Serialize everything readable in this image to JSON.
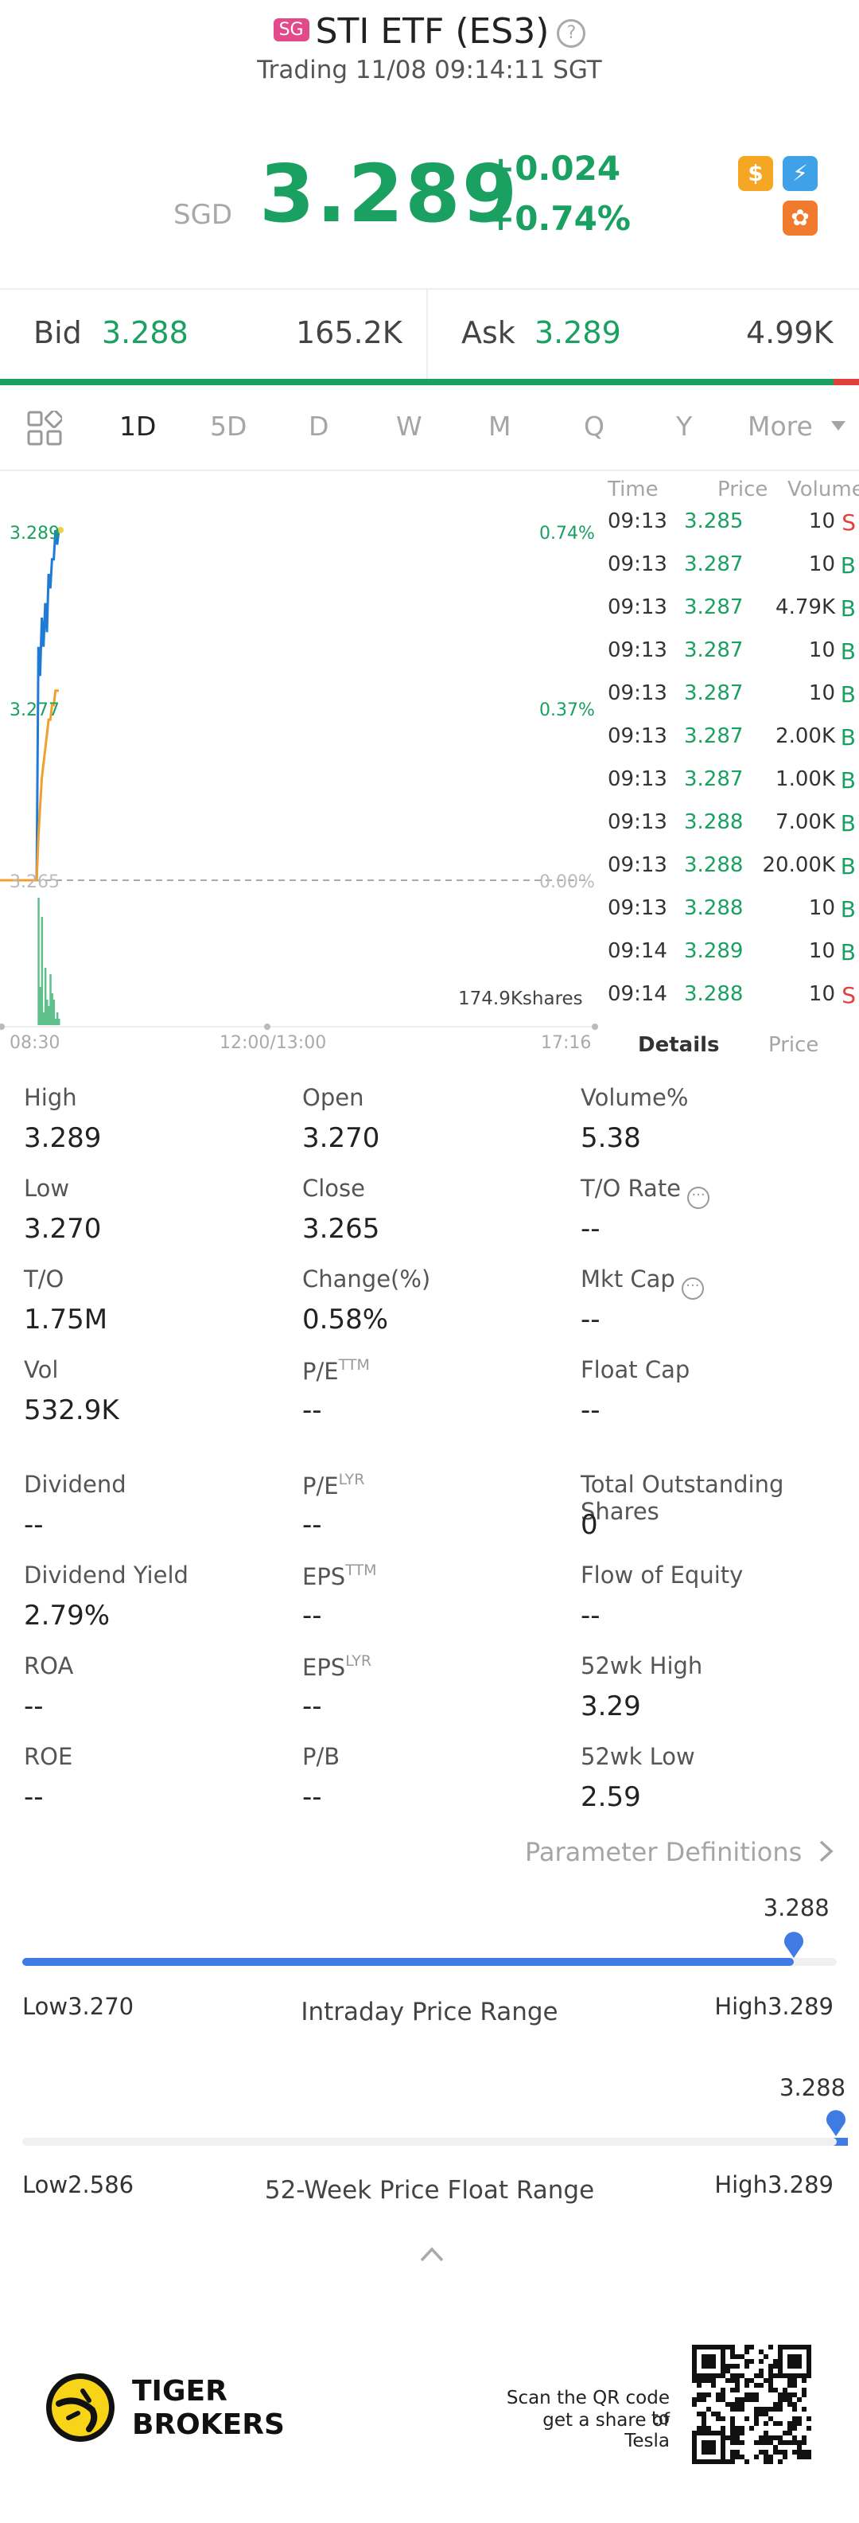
{
  "header": {
    "market_badge": "SG",
    "title": "STI ETF (ES3)",
    "help_icon": "question-circle-icon",
    "trading_status": "Trading 11/08 09:14:11 SGT",
    "currency": "SGD",
    "last_price": "3.289",
    "change_abs": "+0.024",
    "change_pct": "+0.74%",
    "badges": [
      {
        "icon": "dollar-badge-icon",
        "glyph": "$",
        "color": "#f5a623"
      },
      {
        "icon": "lightning-badge-icon",
        "glyph": "⚡",
        "color": "#3fa2e8"
      },
      {
        "icon": "brain-badge-icon",
        "glyph": "✿",
        "color": "#f07b2e"
      }
    ]
  },
  "bidask": {
    "bid_label": "Bid",
    "bid_price": "3.288",
    "bid_size": "165.2K",
    "ask_label": "Ask",
    "ask_price": "3.289",
    "ask_size": "4.99K",
    "bid_share": 0.97
  },
  "tabs": {
    "items": [
      "1D",
      "5D",
      "D",
      "W",
      "M",
      "Q",
      "Y",
      "More"
    ],
    "active": "1D",
    "grid_icon": "layout-grid-icon",
    "more_icon": "caret-down-icon"
  },
  "chart_data": {
    "type": "line",
    "y_left_labels": [
      "3.289",
      "3.277",
      "3.265"
    ],
    "y_right_labels": [
      "0.74%",
      "0.37%",
      "0.00%"
    ],
    "x_labels": [
      "08:30",
      "12:00/13:00",
      "17:16"
    ],
    "ylim": [
      3.253,
      3.289
    ],
    "prev_close": 3.265,
    "volume_label": "174.9Kshares",
    "series": [
      {
        "color": "#1f7bd6",
        "values": [
          3.265,
          3.265,
          3.281,
          3.279,
          3.283,
          3.281,
          3.284,
          3.282,
          3.286,
          3.285,
          3.287,
          3.287,
          3.289,
          3.288,
          3.289
        ]
      },
      {
        "color": "#f0a030",
        "values": [
          3.265,
          3.265,
          3.268,
          3.27,
          3.272,
          3.273,
          3.274,
          3.275,
          3.276,
          3.276,
          3.277,
          3.277,
          3.278,
          3.278,
          3.278
        ]
      }
    ],
    "volume": [
      0.0,
      0.0,
      1.0,
      0.3,
      0.85,
      0.1,
      0.45,
      0.2,
      0.15,
      0.4,
      0.25,
      0.2,
      0.05,
      0.1,
      0.05
    ]
  },
  "trades": {
    "headers": {
      "time": "Time",
      "price": "Price",
      "volume": "Volume"
    },
    "rows": [
      {
        "time": "09:13",
        "price": "3.285",
        "volume": "10",
        "side": "S"
      },
      {
        "time": "09:13",
        "price": "3.287",
        "volume": "10",
        "side": "B"
      },
      {
        "time": "09:13",
        "price": "3.287",
        "volume": "4.79K",
        "side": "B"
      },
      {
        "time": "09:13",
        "price": "3.287",
        "volume": "10",
        "side": "B"
      },
      {
        "time": "09:13",
        "price": "3.287",
        "volume": "10",
        "side": "B"
      },
      {
        "time": "09:13",
        "price": "3.287",
        "volume": "2.00K",
        "side": "B"
      },
      {
        "time": "09:13",
        "price": "3.287",
        "volume": "1.00K",
        "side": "B"
      },
      {
        "time": "09:13",
        "price": "3.288",
        "volume": "7.00K",
        "side": "B"
      },
      {
        "time": "09:13",
        "price": "3.288",
        "volume": "20.00K",
        "side": "B"
      },
      {
        "time": "09:13",
        "price": "3.288",
        "volume": "10",
        "side": "B"
      },
      {
        "time": "09:14",
        "price": "3.289",
        "volume": "10",
        "side": "B"
      },
      {
        "time": "09:14",
        "price": "3.288",
        "volume": "10",
        "side": "S"
      }
    ],
    "tab_details": "Details",
    "tab_price": "Price"
  },
  "stats": [
    {
      "label": "High",
      "value": "3.289"
    },
    {
      "label": "Open",
      "value": "3.270"
    },
    {
      "label": "Volume%",
      "value": "5.38"
    },
    {
      "label": "Low",
      "value": "3.270"
    },
    {
      "label": "Close",
      "value": "3.265"
    },
    {
      "label": "T/O Rate",
      "value": "--",
      "info": true
    },
    {
      "label": "T/O",
      "value": "1.75M"
    },
    {
      "label": "Change(%)",
      "value": "0.58%"
    },
    {
      "label": "Mkt Cap",
      "value": "--",
      "info": true
    },
    {
      "label": "Vol",
      "value": "532.9K"
    },
    {
      "label": "P/E",
      "sup": "TTM",
      "value": "--"
    },
    {
      "label": "Float Cap",
      "value": "--"
    },
    {
      "label": "Dividend",
      "value": "--"
    },
    {
      "label": "P/E",
      "sup": "LYR",
      "value": "--"
    },
    {
      "label": "Total Outstanding Shares",
      "value": "0"
    },
    {
      "label": "Dividend Yield",
      "value": "2.79%"
    },
    {
      "label": "EPS",
      "sup": "TTM",
      "value": "--"
    },
    {
      "label": "Flow of Equity",
      "value": "--"
    },
    {
      "label": "ROA",
      "value": "--"
    },
    {
      "label": "EPS",
      "sup": "LYR",
      "value": "--"
    },
    {
      "label": "52wk High",
      "value": "3.29"
    },
    {
      "label": "ROE",
      "value": "--"
    },
    {
      "label": "P/B",
      "value": "--"
    },
    {
      "label": "52wk Low",
      "value": "2.59"
    }
  ],
  "param_definitions": "Parameter Definitions",
  "ranges": {
    "intraday": {
      "current": "3.288",
      "low_label": "Low3.270",
      "high_label": "High3.289",
      "title": "Intraday Price Range",
      "position": 0.947
    },
    "week52": {
      "current": "3.288",
      "low_label": "Low2.586",
      "high_label": "High3.289",
      "title": "52-Week Price Float Range",
      "position": 0.9986
    }
  },
  "collapse_icon": "chevron-up-icon",
  "footer": {
    "brand_line1": "TIGER",
    "brand_line2": "BROKERS",
    "logo_icon": "tiger-logo-icon",
    "qr_caption_line1": "Scan the QR code to",
    "qr_caption_line2": "get a share of Tesla",
    "qr_icon": "qr-code-icon"
  }
}
